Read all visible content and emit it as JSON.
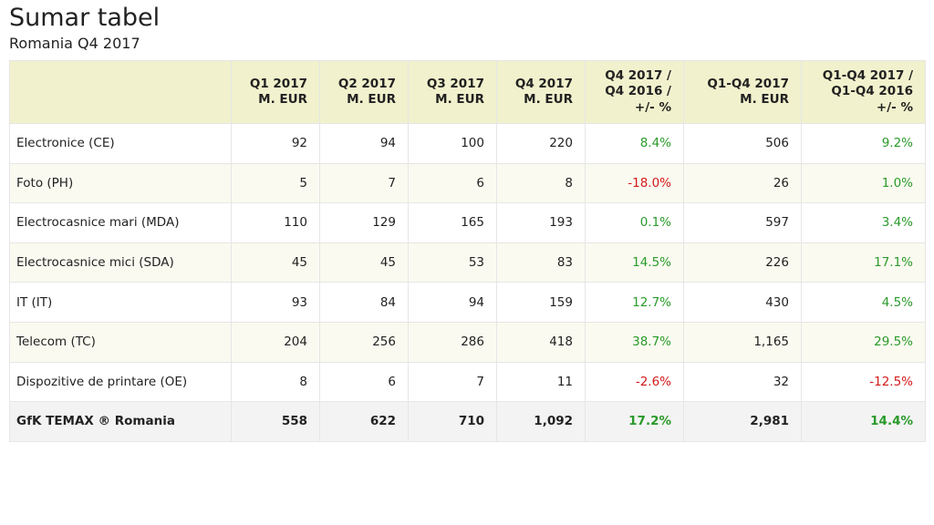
{
  "title": "Sumar tabel",
  "subtitle": "Romania Q4 2017",
  "colors": {
    "header_bg": "#f1f1cd",
    "positive": "#2a9a2a",
    "negative": "#d31a1a"
  },
  "headers": [
    [
      ""
    ],
    [
      "Q1 2017",
      "M. EUR"
    ],
    [
      "Q2 2017",
      "M. EUR"
    ],
    [
      "Q3 2017",
      "M. EUR"
    ],
    [
      "Q4 2017",
      "M. EUR"
    ],
    [
      "Q4 2017 /",
      "Q4 2016 /",
      "+/- %"
    ],
    [
      "Q1-Q4 2017",
      "M. EUR"
    ],
    [
      "Q1-Q4 2017 /",
      "Q1-Q4 2016",
      "+/- %"
    ]
  ],
  "rows": [
    {
      "cells": [
        "Electronice (CE)",
        "92",
        "94",
        "100",
        "220",
        "8.4%",
        "506",
        "9.2%"
      ]
    },
    {
      "cells": [
        "Foto (PH)",
        "5",
        "7",
        "6",
        "8",
        "-18.0%",
        "26",
        "1.0%"
      ]
    },
    {
      "cells": [
        "Electrocasnice mari (MDA)",
        "110",
        "129",
        "165",
        "193",
        "0.1%",
        "597",
        "3.4%"
      ]
    },
    {
      "cells": [
        "Electrocasnice mici (SDA)",
        "45",
        "45",
        "53",
        "83",
        "14.5%",
        "226",
        "17.1%"
      ]
    },
    {
      "cells": [
        "IT (IT)",
        "93",
        "84",
        "94",
        "159",
        "12.7%",
        "430",
        "4.5%"
      ]
    },
    {
      "cells": [
        "Telecom (TC)",
        "204",
        "256",
        "286",
        "418",
        "38.7%",
        "1,165",
        "29.5%"
      ]
    },
    {
      "cells": [
        "Dispozitive de printare (OE)",
        "8",
        "6",
        "7",
        "11",
        "-2.6%",
        "32",
        "-12.5%"
      ]
    }
  ],
  "total": {
    "cells": [
      "GfK TEMAX ® Romania",
      "558",
      "622",
      "710",
      "1,092",
      "17.2%",
      "2,981",
      "14.4%"
    ]
  }
}
